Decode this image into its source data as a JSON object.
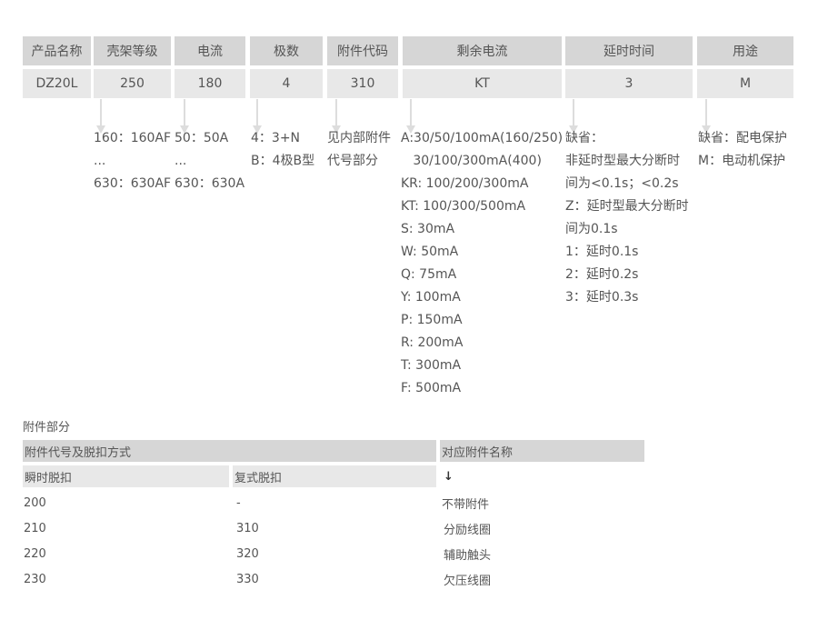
{
  "table": {
    "headers": [
      "产品名称",
      "壳架等级",
      "电流",
      "极数",
      "附件代码",
      "剩余电流",
      "延时时间",
      "用途"
    ],
    "values": [
      "DZ20L",
      "250",
      "180",
      "4",
      "310",
      "KT",
      "3",
      "M"
    ]
  },
  "descriptions": [
    [],
    [
      "160：160AF",
      "...",
      "630：630AF"
    ],
    [
      "50：50A",
      "...",
      "630：630A"
    ],
    [
      "4：3+N",
      "B：4极B型"
    ],
    [
      "见内部附件",
      "代号部分"
    ],
    [
      "A:30/50/100mA(160/250)",
      "   30/100/300mA(400)",
      "KR: 100/200/300mA",
      "KT: 100/300/500mA",
      "S: 30mA",
      "W: 50mA",
      "Q: 75mA",
      "Y: 100mA",
      "P: 150mA",
      "R: 200mA",
      "T: 300mA",
      "F: 500mA"
    ],
    [
      "缺省：",
      "非延时型最大分断时",
      "间为<0.1s；<0.2s",
      "Z：延时型最大分断时",
      "间为0.1s",
      "1：延时0.1s",
      "2：延时0.2s",
      "3：延时0.3s"
    ],
    [
      "缺省：配电保护",
      "M：电动机保护"
    ]
  ],
  "accessory": {
    "title": "附件部分",
    "header_left": "附件代号及脱扣方式",
    "header_right": "对应附件名称",
    "sub_instant": "瞬时脱扣",
    "sub_compound": "复式脱扣",
    "arrow": "↓",
    "rows": [
      [
        "200",
        "-",
        "不带附件"
      ],
      [
        "210",
        "310",
        "分励线圈"
      ],
      [
        "220",
        "320",
        "辅助触头"
      ],
      [
        "230",
        "330",
        "欠压线圈"
      ]
    ]
  }
}
